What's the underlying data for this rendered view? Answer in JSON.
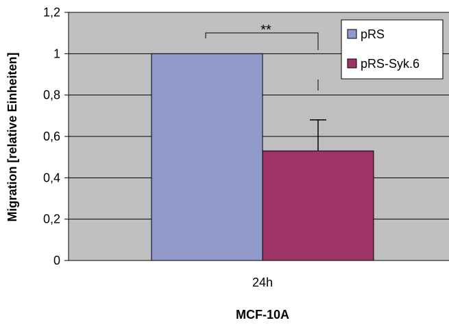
{
  "chart_data": {
    "type": "bar",
    "categories": [
      "24h"
    ],
    "series": [
      {
        "name": "pRS",
        "values": [
          1.0
        ],
        "error": [
          0
        ],
        "color": "#9099cc"
      },
      {
        "name": "pRS-Syk.6",
        "values": [
          0.53
        ],
        "error": [
          0.15
        ],
        "color": "#9e3366"
      }
    ],
    "ylabel": "Migration [relative Einheiten]",
    "xlabel": "MCF-10A",
    "ylim": [
      0,
      1.2
    ],
    "yticks": [
      0,
      0.2,
      0.4,
      0.6,
      0.8,
      1,
      1.2
    ],
    "ytick_labels": [
      "0",
      "0,2",
      "0,4",
      "0,6",
      "0,8",
      "1",
      "1,2"
    ],
    "grid": true,
    "plot_background": "#c0c0c0",
    "legend_position": "top-right",
    "annotation": {
      "text": "**",
      "between": [
        "pRS",
        "pRS-Syk.6"
      ]
    }
  }
}
